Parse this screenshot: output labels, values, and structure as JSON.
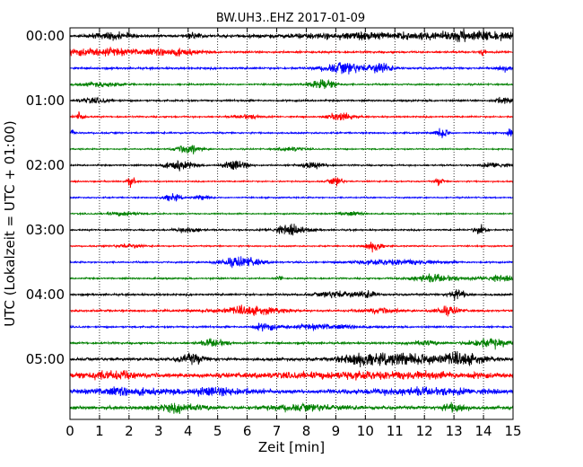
{
  "chart_data": {
    "type": "line",
    "title": "BW.UH3..EHZ 2017-01-09",
    "xlabel": "Zeit  [min]",
    "ylabel": "UTC (Lokalzeit = UTC + 01:00)",
    "xlim": [
      0,
      15
    ],
    "x_ticks": [
      "0",
      "1",
      "2",
      "3",
      "4",
      "5",
      "6",
      "7",
      "8",
      "9",
      "10",
      "11",
      "12",
      "13",
      "14",
      "15"
    ],
    "y_ticks": [
      "00:00",
      "01:00",
      "02:00",
      "03:00",
      "04:00",
      "05:00"
    ],
    "grid": "vertical dotted",
    "colors": [
      "#000000",
      "#ff0000",
      "#0000ff",
      "#008000"
    ],
    "traces": [
      {
        "hour": "00:00",
        "color": "#000000",
        "base": 0.55,
        "bursts": [
          [
            1.5,
            0.5,
            1.6
          ],
          [
            4.2,
            0.15,
            1.4
          ],
          [
            10.8,
            2.5,
            1.5
          ],
          [
            13.8,
            0.8,
            1.7
          ]
        ]
      },
      {
        "hour": "00:15",
        "color": "#ff0000",
        "base": 0.45,
        "bursts": [
          [
            1.0,
            1.2,
            1.7
          ],
          [
            3.5,
            0.6,
            1.5
          ],
          [
            14.0,
            0.05,
            2.2
          ]
        ]
      },
      {
        "hour": "00:30",
        "color": "#0000ff",
        "base": 0.45,
        "bursts": [
          [
            9.3,
            0.5,
            2.6
          ],
          [
            10.5,
            0.3,
            2.2
          ],
          [
            14.7,
            0.2,
            1.2
          ]
        ]
      },
      {
        "hour": "00:45",
        "color": "#008000",
        "base": 0.35,
        "bursts": [
          [
            8.6,
            0.3,
            2.7
          ],
          [
            1.0,
            0.5,
            1.0
          ]
        ]
      },
      {
        "hour": "01:00",
        "color": "#000000",
        "base": 0.4,
        "bursts": [
          [
            14.7,
            0.2,
            1.8
          ],
          [
            0.8,
            0.4,
            1.1
          ]
        ]
      },
      {
        "hour": "01:15",
        "color": "#ff0000",
        "base": 0.35,
        "bursts": [
          [
            0.35,
            0.1,
            2.2
          ],
          [
            9.2,
            0.3,
            1.9
          ],
          [
            6.0,
            0.3,
            1.0
          ]
        ]
      },
      {
        "hour": "01:30",
        "color": "#0000ff",
        "base": 0.35,
        "bursts": [
          [
            0.1,
            0.05,
            1.6
          ],
          [
            12.6,
            0.15,
            2.7
          ],
          [
            14.9,
            0.05,
            2.0
          ]
        ]
      },
      {
        "hour": "01:45",
        "color": "#008000",
        "base": 0.3,
        "bursts": [
          [
            4.0,
            0.3,
            2.1
          ],
          [
            7.5,
            0.3,
            1.0
          ]
        ]
      },
      {
        "hour": "02:00",
        "color": "#000000",
        "base": 0.35,
        "bursts": [
          [
            3.7,
            0.35,
            2.1
          ],
          [
            5.6,
            0.3,
            2.1
          ],
          [
            8.2,
            0.3,
            1.5
          ],
          [
            14.4,
            0.3,
            1.3
          ]
        ]
      },
      {
        "hour": "02:15",
        "color": "#ff0000",
        "base": 0.3,
        "bursts": [
          [
            2.05,
            0.1,
            2.4
          ],
          [
            9.0,
            0.15,
            2.1
          ],
          [
            12.5,
            0.1,
            1.6
          ]
        ]
      },
      {
        "hour": "02:30",
        "color": "#0000ff",
        "base": 0.3,
        "bursts": [
          [
            3.45,
            0.2,
            2.0
          ],
          [
            4.5,
            0.2,
            1.1
          ]
        ]
      },
      {
        "hour": "02:45",
        "color": "#008000",
        "base": 0.3,
        "bursts": [
          [
            1.8,
            0.4,
            1.0
          ],
          [
            9.5,
            0.3,
            0.9
          ]
        ]
      },
      {
        "hour": "03:00",
        "color": "#000000",
        "base": 0.35,
        "bursts": [
          [
            7.5,
            0.4,
            2.3
          ],
          [
            13.9,
            0.15,
            2.5
          ],
          [
            4.0,
            0.3,
            1.2
          ]
        ]
      },
      {
        "hour": "03:15",
        "color": "#ff0000",
        "base": 0.3,
        "bursts": [
          [
            10.3,
            0.2,
            2.6
          ],
          [
            2.0,
            0.3,
            1.1
          ]
        ]
      },
      {
        "hour": "03:30",
        "color": "#0000ff",
        "base": 0.35,
        "bursts": [
          [
            5.8,
            0.5,
            2.4
          ],
          [
            11.0,
            1.0,
            1.3
          ]
        ]
      },
      {
        "hour": "03:45",
        "color": "#008000",
        "base": 0.35,
        "bursts": [
          [
            7.1,
            0.05,
            2.0
          ],
          [
            12.3,
            0.6,
            1.7
          ],
          [
            14.5,
            0.5,
            1.2
          ]
        ]
      },
      {
        "hour": "04:00",
        "color": "#000000",
        "base": 0.45,
        "bursts": [
          [
            9.1,
            0.5,
            1.6
          ],
          [
            13.1,
            0.2,
            2.4
          ],
          [
            10.1,
            0.2,
            1.4
          ]
        ]
      },
      {
        "hour": "04:15",
        "color": "#ff0000",
        "base": 0.45,
        "bursts": [
          [
            6.0,
            0.8,
            1.9
          ],
          [
            12.8,
            0.3,
            1.9
          ],
          [
            10.5,
            0.4,
            1.2
          ]
        ]
      },
      {
        "hour": "04:30",
        "color": "#0000ff",
        "base": 0.4,
        "bursts": [
          [
            6.6,
            0.3,
            1.6
          ],
          [
            8.5,
            0.8,
            1.2
          ]
        ]
      },
      {
        "hour": "04:45",
        "color": "#008000",
        "base": 0.45,
        "bursts": [
          [
            4.9,
            0.3,
            1.8
          ],
          [
            14.2,
            0.5,
            2.2
          ],
          [
            12.0,
            0.3,
            1.3
          ]
        ]
      },
      {
        "hour": "05:00",
        "color": "#000000",
        "base": 0.65,
        "bursts": [
          [
            4.1,
            0.3,
            2.3
          ],
          [
            9.8,
            0.4,
            2.3
          ],
          [
            11.5,
            1.2,
            2.6
          ],
          [
            13.3,
            0.5,
            1.9
          ]
        ]
      },
      {
        "hour": "05:15",
        "color": "#ff0000",
        "base": 0.75,
        "bursts": [
          [
            1.3,
            0.8,
            1.8
          ],
          [
            10.5,
            3.0,
            1.4
          ]
        ]
      },
      {
        "hour": "05:30",
        "color": "#0000ff",
        "base": 0.8,
        "bursts": [
          [
            1.8,
            0.8,
            1.6
          ],
          [
            5.0,
            1.0,
            1.5
          ],
          [
            12.0,
            1.5,
            1.3
          ]
        ]
      },
      {
        "hour": "05:45",
        "color": "#008000",
        "base": 0.75,
        "bursts": [
          [
            3.7,
            0.6,
            1.8
          ],
          [
            13.0,
            0.3,
            1.8
          ],
          [
            8.0,
            1.0,
            1.2
          ]
        ]
      }
    ]
  }
}
